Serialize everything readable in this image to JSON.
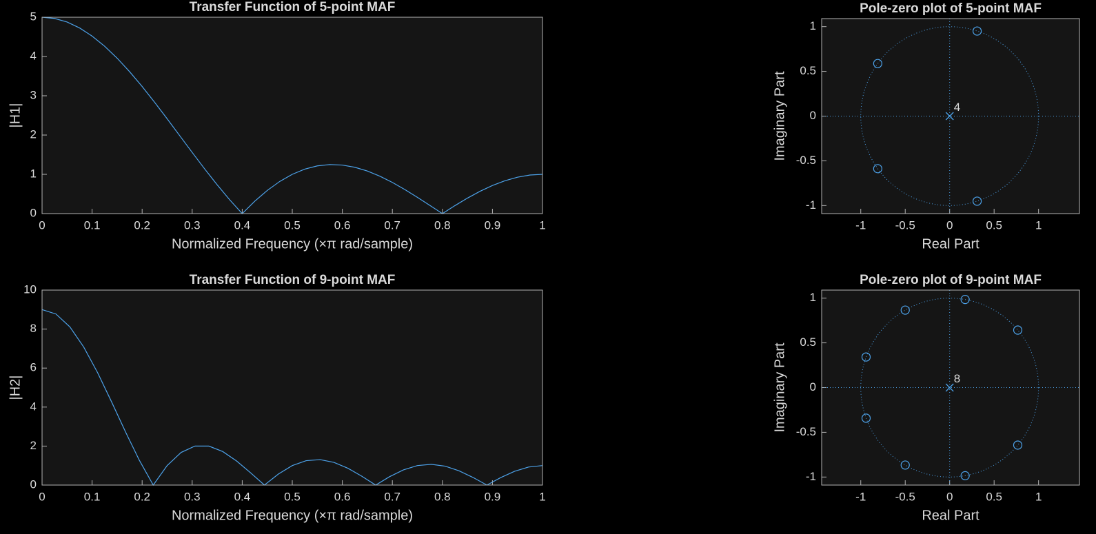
{
  "chart_data": [
    {
      "type": "line",
      "title": "Transfer Function of 5-point MAF",
      "xlabel": "Normalized  Frequency  (×π  rad/sample)",
      "ylabel": "|H1|",
      "x": [
        0,
        0.025,
        0.05,
        0.075,
        0.1,
        0.125,
        0.15,
        0.175,
        0.2,
        0.225,
        0.25,
        0.275,
        0.3,
        0.325,
        0.35,
        0.375,
        0.4,
        0.425,
        0.45,
        0.475,
        0.5,
        0.525,
        0.55,
        0.575,
        0.6,
        0.625,
        0.65,
        0.675,
        0.7,
        0.725,
        0.75,
        0.775,
        0.8,
        0.825,
        0.85,
        0.875,
        0.9,
        0.925,
        0.95,
        0.975,
        1
      ],
      "values": [
        5,
        4.969,
        4.878,
        4.727,
        4.52,
        4.262,
        3.958,
        3.613,
        3.236,
        2.834,
        2.414,
        1.986,
        1.558,
        1.137,
        0.732,
        0.351,
        0,
        0.315,
        0.589,
        0.819,
        1,
        1.132,
        1.215,
        1.249,
        1.236,
        1.18,
        1.084,
        0.953,
        0.794,
        0.612,
        0.414,
        0.208,
        0,
        0.203,
        0.394,
        0.567,
        0.716,
        0.837,
        0.927,
        0.982,
        1
      ],
      "color": "#4da3eb",
      "xlim": [
        0,
        1
      ],
      "ylim": [
        0,
        5
      ],
      "xticks": [
        0,
        0.1,
        0.2,
        0.3,
        0.4,
        0.5,
        0.6,
        0.7,
        0.8,
        0.9,
        1
      ],
      "yticks": [
        0,
        1,
        2,
        3,
        4,
        5
      ]
    },
    {
      "type": "pole-zero",
      "title": "Pole-zero plot of 5-point MAF",
      "xlabel": "Real Part",
      "ylabel": "Imaginary Part",
      "zeros": {
        "x": [
          0.309,
          -0.809,
          -0.809,
          0.309
        ],
        "y": [
          0.951,
          0.588,
          -0.588,
          -0.951
        ]
      },
      "poles": {
        "x": [
          0
        ],
        "y": [
          0
        ]
      },
      "pole_multiplicity": 4,
      "color": "#4da3eb",
      "xlim": [
        -1.44,
        1.46
      ],
      "ylim": [
        -1.09,
        1.09
      ],
      "xticks": [
        -1,
        -0.5,
        0,
        0.5,
        1
      ],
      "yticks": [
        -1,
        -0.5,
        0,
        0.5,
        1
      ]
    },
    {
      "type": "line",
      "title": "Transfer Function of 9-point MAF",
      "xlabel": "Normalized  Frequency  (×π  rad/sample)",
      "ylabel": "|H2|",
      "x": [
        0,
        0.0278,
        0.0556,
        0.0833,
        0.1111,
        0.1389,
        0.1667,
        0.1944,
        0.2222,
        0.25,
        0.2778,
        0.3056,
        0.3333,
        0.3611,
        0.3889,
        0.4167,
        0.4444,
        0.4722,
        0.5,
        0.5278,
        0.5556,
        0.5833,
        0.6111,
        0.6389,
        0.6667,
        0.6944,
        0.7222,
        0.75,
        0.7778,
        0.8056,
        0.8333,
        0.8611,
        0.8889,
        0.9167,
        0.9444,
        0.9722,
        1
      ],
      "values": [
        9,
        8.773,
        8.113,
        7.078,
        5.759,
        4.269,
        2.732,
        1.273,
        0,
        1,
        1.673,
        2.001,
        2,
        1.72,
        1.233,
        0.629,
        0,
        0.566,
        1,
        1.253,
        1.305,
        1.165,
        0.863,
        0.454,
        0,
        0.431,
        0.78,
        1,
        1.064,
        0.969,
        0.732,
        0.392,
        0,
        0.386,
        0.71,
        0.925,
        1
      ],
      "color": "#4da3eb",
      "xlim": [
        0,
        1
      ],
      "ylim": [
        0,
        10
      ],
      "xticks": [
        0,
        0.1,
        0.2,
        0.3,
        0.4,
        0.5,
        0.6,
        0.7,
        0.8,
        0.9,
        1
      ],
      "yticks": [
        0,
        2,
        4,
        6,
        8,
        10
      ]
    },
    {
      "type": "pole-zero",
      "title": "Pole-zero plot of 9-point MAF",
      "xlabel": "Real Part",
      "ylabel": "Imaginary Part",
      "zeros": {
        "x": [
          0.766,
          0.174,
          -0.5,
          -0.94,
          -0.94,
          -0.5,
          0.174,
          0.766
        ],
        "y": [
          0.643,
          0.985,
          0.866,
          0.342,
          -0.342,
          -0.866,
          -0.985,
          -0.643
        ]
      },
      "poles": {
        "x": [
          0
        ],
        "y": [
          0
        ]
      },
      "pole_multiplicity": 8,
      "color": "#4da3eb",
      "xlim": [
        -1.44,
        1.46
      ],
      "ylim": [
        -1.09,
        1.09
      ],
      "xticks": [
        -1,
        -0.5,
        0,
        0.5,
        1
      ],
      "yticks": [
        -1,
        -0.5,
        0,
        0.5,
        1
      ]
    }
  ]
}
